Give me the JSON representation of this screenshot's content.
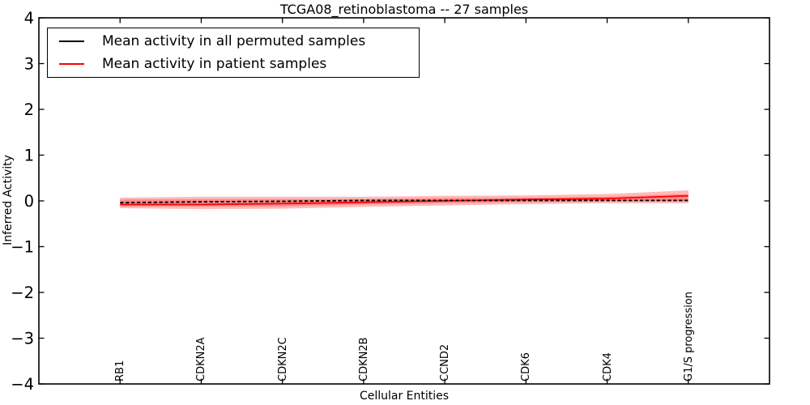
{
  "figure": {
    "background": "#ffffff",
    "axis_color": "#000000"
  },
  "chart_data": {
    "type": "line",
    "title": "TCGA08_retinoblastoma -- 27 samples",
    "xlabel": "Cellular Entities",
    "ylabel": "Inferred Activity",
    "ylim": [
      -4,
      4
    ],
    "grid": false,
    "legend_position": "upper left",
    "tick_direction": "in",
    "categories": [
      "RB1",
      "CDKN2A",
      "CDKN2C",
      "CDKN2B",
      "CCND2",
      "CDK6",
      "CDK4",
      "G1/S progression"
    ],
    "y_ticks": [
      4,
      3,
      2,
      1,
      0,
      -1,
      -2,
      -3,
      -4
    ],
    "y_tick_labels": [
      "4",
      "3",
      "2",
      "1",
      "0",
      "−1",
      "−2",
      "−3",
      "−4"
    ],
    "series": [
      {
        "name": "Mean activity in all permuted samples",
        "color": "#000000",
        "style": "dashed",
        "values": [
          -0.04,
          -0.02,
          -0.01,
          0.01,
          0.01,
          0.01,
          0.01,
          0.01
        ]
      },
      {
        "name": "Mean activity in patient samples",
        "color": "#ff0000",
        "style": "solid",
        "values": [
          -0.08,
          -0.08,
          -0.06,
          -0.03,
          0.0,
          0.03,
          0.05,
          0.11
        ]
      }
    ],
    "bands": [
      {
        "name": "patient-activity-outer-band",
        "color": "#ff0000",
        "opacity": 0.27,
        "upper": [
          0.07,
          0.09,
          0.09,
          0.09,
          0.11,
          0.12,
          0.15,
          0.23
        ],
        "lower": [
          -0.16,
          -0.18,
          -0.17,
          -0.13,
          -0.1,
          -0.07,
          -0.05,
          -0.05
        ]
      },
      {
        "name": "patient-activity-inner-band",
        "color": "#ff0000",
        "opacity": 0.25,
        "upper": [
          0.03,
          0.04,
          0.04,
          0.04,
          0.06,
          0.07,
          0.09,
          0.15
        ],
        "lower": [
          -0.12,
          -0.12,
          -0.12,
          -0.08,
          -0.05,
          -0.03,
          -0.01,
          -0.01
        ]
      }
    ],
    "legend": {
      "entries": [
        {
          "label": "Mean activity in all permuted samples",
          "color": "#000000"
        },
        {
          "label": "Mean activity in patient samples",
          "color": "#ff0000"
        }
      ]
    }
  }
}
